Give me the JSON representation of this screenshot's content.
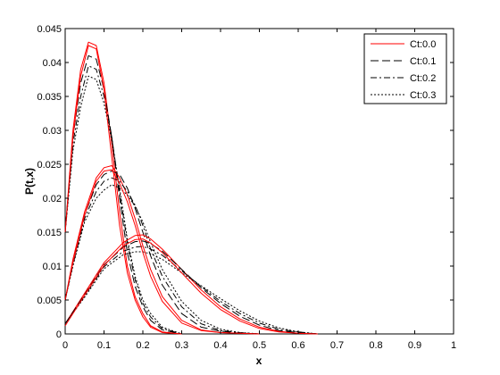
{
  "chart_data": {
    "type": "line",
    "xlabel": "x",
    "ylabel": "P(t,x)",
    "xlim": [
      0,
      1
    ],
    "ylim": [
      0,
      0.045
    ],
    "xticks": [
      0,
      0.1,
      0.2,
      0.3,
      0.4,
      0.5,
      0.6,
      0.7,
      0.8,
      0.9,
      1
    ],
    "xtick_labels": [
      "0",
      "0.1",
      "0.2",
      "0.3",
      "0.4",
      "0.5",
      "0.6",
      "0.7",
      "0.8",
      "0.9",
      "1"
    ],
    "yticks": [
      0,
      0.005,
      0.01,
      0.015,
      0.02,
      0.025,
      0.03,
      0.035,
      0.04,
      0.045
    ],
    "ytick_labels": [
      "0",
      "0.005",
      "0.01",
      "0.015",
      "0.02",
      "0.025",
      "0.03",
      "0.035",
      "0.04",
      "0.045"
    ],
    "grid": false,
    "legend_position": "top-right",
    "legend": [
      "Ct:0.0",
      "Ct:0.1",
      "Ct:0.2",
      "Ct:0.3"
    ],
    "styles": {
      "Ct:0.0": {
        "color": "#ff0000",
        "dash": ""
      },
      "Ct:0.1": {
        "color": "#000000",
        "dash": "9,4"
      },
      "Ct:0.2": {
        "color": "#000000",
        "dash": "7,3,2,3"
      },
      "Ct:0.3": {
        "color": "#000000",
        "dash": "2,2"
      }
    },
    "series": [
      {
        "name": "Ct:0.0",
        "x": [
          0,
          0.02,
          0.04,
          0.06,
          0.08,
          0.1,
          0.12,
          0.14,
          0.16,
          0.18,
          0.2,
          0.22,
          0.25,
          0.3
        ],
        "y": [
          0.015,
          0.03,
          0.039,
          0.043,
          0.0425,
          0.037,
          0.028,
          0.018,
          0.01,
          0.0055,
          0.003,
          0.0012,
          0.0003,
          0
        ]
      },
      {
        "name": "Ct:0.1",
        "x": [
          0,
          0.02,
          0.04,
          0.06,
          0.08,
          0.1,
          0.12,
          0.14,
          0.16,
          0.18,
          0.2,
          0.22,
          0.25,
          0.3
        ],
        "y": [
          0.015,
          0.029,
          0.037,
          0.041,
          0.0405,
          0.036,
          0.029,
          0.02,
          0.012,
          0.007,
          0.004,
          0.002,
          0.0006,
          0
        ]
      },
      {
        "name": "Ct:0.2",
        "x": [
          0,
          0.02,
          0.04,
          0.06,
          0.08,
          0.1,
          0.12,
          0.14,
          0.16,
          0.18,
          0.2,
          0.22,
          0.25,
          0.3
        ],
        "y": [
          0.015,
          0.028,
          0.035,
          0.0395,
          0.039,
          0.035,
          0.029,
          0.021,
          0.0135,
          0.008,
          0.0045,
          0.0025,
          0.0008,
          0
        ]
      },
      {
        "name": "Ct:0.3",
        "x": [
          0,
          0.02,
          0.04,
          0.06,
          0.08,
          0.1,
          0.12,
          0.14,
          0.16,
          0.18,
          0.2,
          0.22,
          0.25,
          0.3
        ],
        "y": [
          0.015,
          0.027,
          0.0335,
          0.038,
          0.0375,
          0.034,
          0.0285,
          0.0215,
          0.014,
          0.0085,
          0.005,
          0.003,
          0.001,
          0
        ]
      },
      {
        "name": "Ct:0.0",
        "x": [
          0,
          0.02,
          0.05,
          0.08,
          0.1,
          0.12,
          0.14,
          0.16,
          0.18,
          0.2,
          0.22,
          0.25,
          0.3,
          0.35,
          0.4,
          0.45,
          0.5
        ],
        "y": [
          0.005,
          0.011,
          0.018,
          0.023,
          0.0245,
          0.0248,
          0.023,
          0.0205,
          0.017,
          0.013,
          0.0095,
          0.0055,
          0.002,
          0.0006,
          0.0002,
          0.0001,
          0
        ]
      },
      {
        "name": "Ct:0.1",
        "x": [
          0,
          0.02,
          0.05,
          0.08,
          0.1,
          0.12,
          0.14,
          0.16,
          0.18,
          0.2,
          0.22,
          0.25,
          0.3,
          0.35,
          0.4,
          0.45,
          0.5
        ],
        "y": [
          0.005,
          0.0105,
          0.0175,
          0.022,
          0.0235,
          0.024,
          0.0235,
          0.0215,
          0.0185,
          0.015,
          0.0115,
          0.0072,
          0.003,
          0.001,
          0.0004,
          0.0001,
          0
        ]
      },
      {
        "name": "Ct:0.2",
        "x": [
          0,
          0.02,
          0.05,
          0.08,
          0.1,
          0.12,
          0.14,
          0.16,
          0.18,
          0.2,
          0.22,
          0.25,
          0.3,
          0.35,
          0.4,
          0.45,
          0.5
        ],
        "y": [
          0.005,
          0.0102,
          0.017,
          0.021,
          0.0225,
          0.023,
          0.0225,
          0.021,
          0.019,
          0.016,
          0.0125,
          0.0085,
          0.004,
          0.0015,
          0.0005,
          0.0002,
          0
        ]
      },
      {
        "name": "Ct:0.3",
        "x": [
          0,
          0.02,
          0.05,
          0.08,
          0.1,
          0.12,
          0.14,
          0.16,
          0.18,
          0.2,
          0.22,
          0.25,
          0.3,
          0.35,
          0.4,
          0.45,
          0.5
        ],
        "y": [
          0.005,
          0.01,
          0.0165,
          0.02,
          0.0212,
          0.022,
          0.0215,
          0.0205,
          0.0188,
          0.0165,
          0.0135,
          0.0095,
          0.0048,
          0.002,
          0.0007,
          0.0002,
          0
        ]
      },
      {
        "name": "Ct:0.0",
        "x": [
          0,
          0.05,
          0.1,
          0.15,
          0.18,
          0.2,
          0.22,
          0.25,
          0.3,
          0.35,
          0.4,
          0.45,
          0.5,
          0.55,
          0.6,
          0.65
        ],
        "y": [
          0.0015,
          0.006,
          0.0105,
          0.0135,
          0.0145,
          0.0146,
          0.014,
          0.0125,
          0.0095,
          0.0065,
          0.004,
          0.0022,
          0.001,
          0.0004,
          0.0001,
          0
        ]
      },
      {
        "name": "Ct:0.1",
        "x": [
          0,
          0.05,
          0.1,
          0.15,
          0.18,
          0.2,
          0.22,
          0.25,
          0.3,
          0.35,
          0.4,
          0.45,
          0.5,
          0.55,
          0.6,
          0.65
        ],
        "y": [
          0.0015,
          0.0058,
          0.0102,
          0.0128,
          0.0136,
          0.0137,
          0.0133,
          0.0122,
          0.0095,
          0.0068,
          0.0045,
          0.0026,
          0.0013,
          0.0005,
          0.0002,
          0
        ]
      },
      {
        "name": "Ct:0.2",
        "x": [
          0,
          0.05,
          0.1,
          0.15,
          0.18,
          0.2,
          0.22,
          0.25,
          0.3,
          0.35,
          0.4,
          0.45,
          0.5,
          0.55,
          0.6,
          0.65
        ],
        "y": [
          0.0015,
          0.0056,
          0.0099,
          0.0122,
          0.0128,
          0.0129,
          0.0125,
          0.0116,
          0.0093,
          0.007,
          0.0048,
          0.003,
          0.0016,
          0.0007,
          0.0003,
          0
        ]
      },
      {
        "name": "Ct:0.3",
        "x": [
          0,
          0.05,
          0.1,
          0.15,
          0.18,
          0.2,
          0.22,
          0.25,
          0.3,
          0.35,
          0.4,
          0.45,
          0.5,
          0.55,
          0.6,
          0.65
        ],
        "y": [
          0.0015,
          0.0054,
          0.0096,
          0.0117,
          0.0121,
          0.0121,
          0.0118,
          0.011,
          0.009,
          0.0071,
          0.0052,
          0.0034,
          0.0019,
          0.0009,
          0.0003,
          0
        ]
      },
      {
        "name": "Ct:0.0",
        "x": [
          0,
          0.02,
          0.04,
          0.06,
          0.08,
          0.1,
          0.12,
          0.14,
          0.16,
          0.18,
          0.2,
          0.22,
          0.25,
          0.3
        ],
        "y": [
          0.015,
          0.029,
          0.038,
          0.0425,
          0.042,
          0.036,
          0.026,
          0.016,
          0.009,
          0.005,
          0.0025,
          0.001,
          0.0002,
          0
        ]
      },
      {
        "name": "Ct:0.0",
        "x": [
          0,
          0.02,
          0.05,
          0.08,
          0.1,
          0.12,
          0.14,
          0.16,
          0.18,
          0.2,
          0.22,
          0.25,
          0.3,
          0.35,
          0.4,
          0.45,
          0.5
        ],
        "y": [
          0.005,
          0.0105,
          0.0175,
          0.0225,
          0.024,
          0.0242,
          0.0222,
          0.0195,
          0.016,
          0.012,
          0.0085,
          0.0048,
          0.0016,
          0.0005,
          0.0002,
          0.0001,
          0
        ]
      },
      {
        "name": "Ct:0.0",
        "x": [
          0,
          0.05,
          0.1,
          0.15,
          0.18,
          0.2,
          0.22,
          0.25,
          0.3,
          0.35,
          0.4,
          0.45,
          0.5,
          0.55,
          0.6,
          0.65
        ],
        "y": [
          0.0012,
          0.0057,
          0.0101,
          0.013,
          0.0139,
          0.014,
          0.0134,
          0.012,
          0.009,
          0.006,
          0.0036,
          0.0019,
          0.0008,
          0.0003,
          0.0001,
          0
        ]
      }
    ]
  }
}
